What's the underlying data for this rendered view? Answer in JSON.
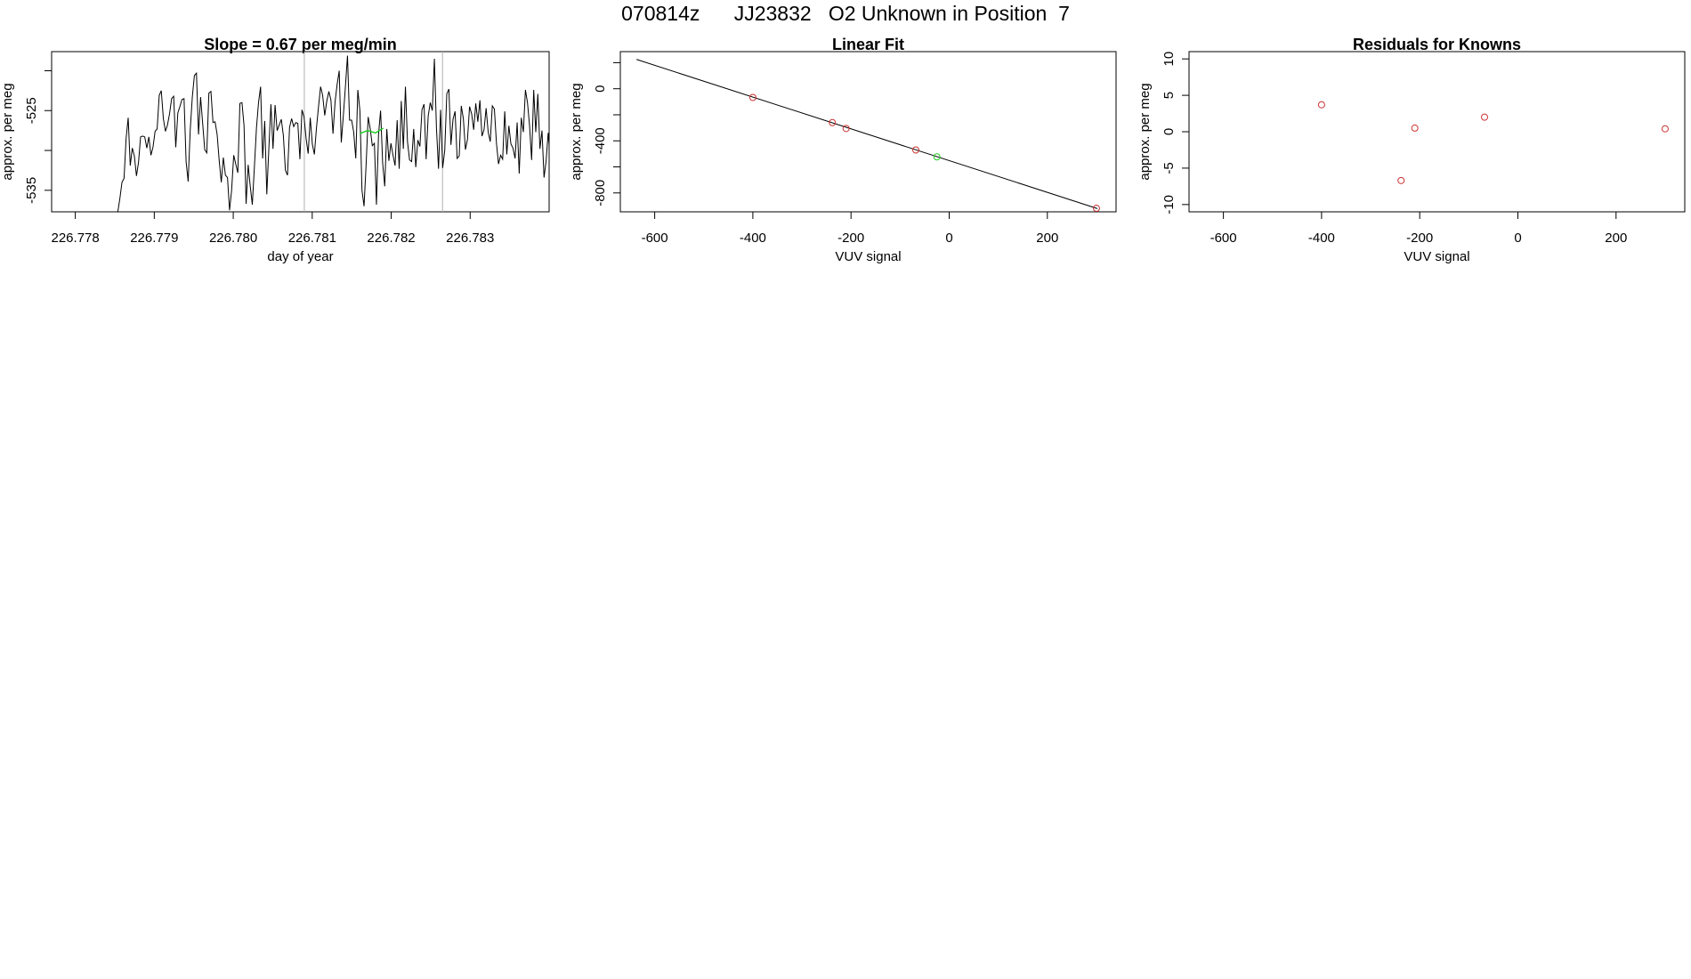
{
  "title": "070814z      JJ23832   O2 Unknown in Position  7",
  "colors": {
    "known": "#cc3333",
    "unknown": "#22cc22",
    "line": "#000000",
    "vline": "#b0b0b0"
  },
  "chart_data": [
    {
      "type": "line",
      "title": "Slope =  0.67  per meg/min",
      "xlabel": "day of year",
      "ylabel": "approx. per meg",
      "xlim": [
        226.7777,
        226.784
      ],
      "ylim": [
        -537.7,
        -517.6
      ],
      "xticks": [
        226.778,
        226.779,
        226.78,
        226.781,
        226.782,
        226.783
      ],
      "xtick_labels": [
        "226.778",
        "226.779",
        "226.780",
        "226.781",
        "226.782",
        "226.783"
      ],
      "yticks": [
        -535,
        -530,
        -525,
        -520
      ],
      "ytick_labels": [
        "-535",
        "",
        "-525",
        ""
      ],
      "vlines": [
        226.7809,
        226.78265
      ],
      "highlight_x": [
        226.7817,
        226.7819
      ],
      "series": [
        {
          "x0": 226.7777,
          "dx": 2.62e-05,
          "values": [
            -537.7,
            -537.7,
            -537.7,
            -537.7,
            -537.7,
            -537.7,
            -537.7,
            -537.7,
            -537.7,
            -537.7,
            -537.7,
            -537.7,
            -537.7,
            -537.7,
            -537.7,
            -537.7,
            -537.7,
            -537.7,
            -537.7,
            -537.7,
            -537.7,
            -537.7,
            -537.7,
            -537.7,
            -537.7,
            -537.7,
            -537.7,
            -537.7,
            -537.7,
            -537.7,
            -537.7,
            -537.7,
            -537.7,
            -536.0,
            -534.0,
            -533.5,
            -528.5,
            -525.9,
            -531.9,
            -529.7,
            -530.7,
            -533.2,
            -531.5,
            -528.3,
            -528.2,
            -528.3,
            -529.7,
            -528.3,
            -530.6,
            -529.6,
            -527.6,
            -527.3,
            -523.1,
            -522.5,
            -526.0,
            -527.6,
            -526.8,
            -525.4,
            -523.5,
            -523.2,
            -529.6,
            -525.3,
            -524.5,
            -523.6,
            -523.5,
            -531.4,
            -533.9,
            -527.4,
            -523.3,
            -520.6,
            -520.3,
            -528.0,
            -523.3,
            -526.6,
            -529.9,
            -530.3,
            -522.8,
            -522.6,
            -526.5,
            -526.4,
            -528.0,
            -531.3,
            -534.0,
            -530.9,
            -533.1,
            -533.4,
            -537.5,
            -535.0,
            -530.6,
            -531.7,
            -532.8,
            -524.1,
            -524.0,
            -526.9,
            -536.7,
            -531.8,
            -534.5,
            -536.8,
            -532.1,
            -527.2,
            -524.0,
            -522.0,
            -531.0,
            -526.3,
            -535.5,
            -529.7,
            -524.2,
            -529.8,
            -524.3,
            -527.5,
            -526.8,
            -526.1,
            -528.1,
            -532.5,
            -533.1,
            -527.1,
            -526.0,
            -527.0,
            -526.5,
            -526.6,
            -531.1,
            -524.9,
            -525.8,
            -528.5,
            -530.4,
            -525.9,
            -529.2,
            -530.5,
            -527.2,
            -524.5,
            -522.0,
            -523.1,
            -525.6,
            -523.8,
            -522.6,
            -523.7,
            -527.9,
            -523.9,
            -521.7,
            -520.0,
            -529.0,
            -525.6,
            -522.0,
            -518.1,
            -526.2,
            -526.2,
            -527.7,
            -531.0,
            -522.4,
            -525.0,
            -535.0,
            -537.0,
            -531.8,
            -525.8,
            -527.3,
            -529.4,
            -529.1,
            -536.8,
            -528.0,
            -525.0,
            -531.6,
            -534.5,
            -527.3,
            -531.3,
            -529.1,
            -530.6,
            -531.9,
            -526.2,
            -532.3,
            -523.8,
            -529.8,
            -522.0,
            -528.9,
            -531.2,
            -531.4,
            -527.3,
            -532.1,
            -528.7,
            -529.5,
            -524.9,
            -524.2,
            -531.1,
            -525.7,
            -524.0,
            -525.0,
            -518.5,
            -527.2,
            -532.3,
            -524.9,
            -532.2,
            -530.0,
            -522.9,
            -522.3,
            -529.3,
            -526.1,
            -525.1,
            -531.0,
            -530.7,
            -524.4,
            -526.0,
            -529.9,
            -528.6,
            -524.5,
            -525.4,
            -527.4,
            -524.1,
            -526.4,
            -523.7,
            -528.2,
            -527.4,
            -524.7,
            -527.7,
            -528.9,
            -524.4,
            -524.8,
            -529.1,
            -531.7,
            -530.6,
            -531.1,
            -525.1,
            -530.5,
            -526.9,
            -529.2,
            -529.7,
            -531.0,
            -526.5,
            -532.9,
            -525.9,
            -527.7,
            -522.4,
            -524.0,
            -526.9,
            -531.2,
            -522.4,
            -527.7,
            -522.9,
            -529.8,
            -527.5,
            -533.4,
            -531.3,
            -527.8,
            -531.0,
            -533.0,
            -529.6,
            -531.5,
            -529.4,
            -528.3,
            -528.2,
            -523.7,
            -523.3,
            -519.9,
            -518.2,
            -516.9,
            -520.8,
            -514.5,
            -517.3,
            -510.6,
            -525.8,
            -532.6,
            -531.2,
            -526.2,
            -525.8,
            -528.7,
            -532.4,
            -529.9,
            -522.9,
            -523.7,
            -520.9,
            -521.4,
            -526.1,
            -525.2,
            -528.8,
            -524.4,
            -526.1,
            -526.2,
            -528.9,
            -530.8,
            -529.0,
            -534.9,
            -532.0,
            -528.7,
            -522.8,
            -523.3,
            -526.3,
            -528.3,
            -531.1,
            -521.1,
            -515.0
          ]
        },
        {
          "name": "",
          "x": [
            226.7816,
            226.7817,
            226.7818,
            226.7819
          ],
          "values": [
            -527.9,
            -527.5,
            -527.8,
            -527.2
          ]
        }
      ]
    },
    {
      "type": "scatter",
      "title": "Linear Fit",
      "xlabel": "VUV signal",
      "ylabel": "approx. per meg",
      "xlim": [
        -670,
        340
      ],
      "ylim": [
        -945,
        285
      ],
      "xticks": [
        -600,
        -400,
        -200,
        0,
        200
      ],
      "xtick_labels": [
        "-600",
        "-400",
        "-200",
        "0",
        "200"
      ],
      "yticks": [
        -800,
        -600,
        -400,
        -200,
        0,
        200
      ],
      "ytick_labels": [
        "-800",
        "",
        "-400",
        "",
        "0",
        ""
      ],
      "fit_line": {
        "x": [
          -637,
          302
        ],
        "y": [
          225,
          -920
        ]
      },
      "known_points": {
        "x": [
          -400,
          -238,
          -210,
          -68,
          300
        ],
        "y": [
          -67,
          -260,
          -305,
          -470,
          -918
        ]
      },
      "unknown_points": {
        "x": [
          -25
        ],
        "y": [
          -523
        ]
      }
    },
    {
      "type": "scatter",
      "title": "Residuals for Knowns",
      "xlabel": "VUV signal",
      "ylabel": "approx. per meg",
      "xlim": [
        -670,
        340
      ],
      "ylim": [
        -11,
        11
      ],
      "xticks": [
        -600,
        -400,
        -200,
        0,
        200
      ],
      "xtick_labels": [
        "-600",
        "-400",
        "-200",
        "0",
        "200"
      ],
      "yticks": [
        -10,
        -5,
        0,
        5,
        10
      ],
      "ytick_labels": [
        "-10",
        "-5",
        "0",
        "5",
        "10"
      ],
      "known_points": {
        "x": [
          -400,
          -238,
          -210,
          -68,
          300
        ],
        "y": [
          3.7,
          -6.7,
          0.5,
          2.0,
          0.4
        ]
      }
    }
  ]
}
